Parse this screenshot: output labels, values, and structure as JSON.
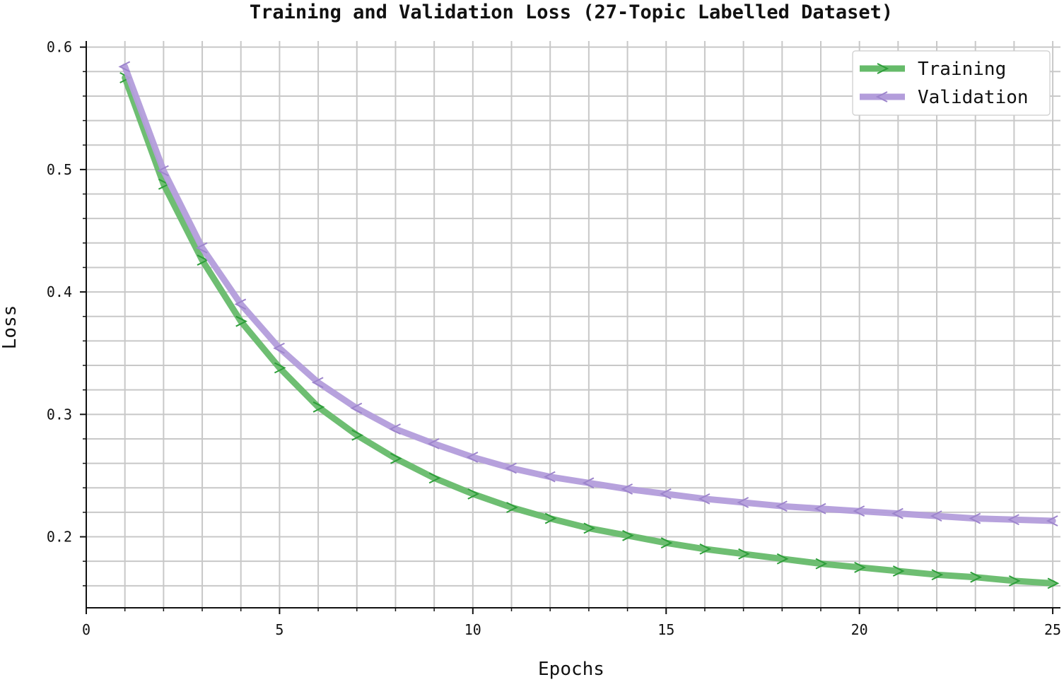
{
  "chart_data": {
    "type": "line",
    "title": "Training and Validation Loss (27-Topic Labelled Dataset)",
    "xlabel": "Epochs",
    "ylabel": "Loss",
    "xlim": [
      0,
      25.2
    ],
    "ylim": [
      0.142,
      0.605
    ],
    "xticks": [
      0,
      5,
      10,
      15,
      20,
      25
    ],
    "yticks": [
      0.2,
      0.3,
      0.4,
      0.5,
      0.6
    ],
    "grid": true,
    "legend_position": "top-right",
    "x": [
      1,
      2,
      3,
      4,
      5,
      6,
      7,
      8,
      9,
      10,
      11,
      12,
      13,
      14,
      15,
      16,
      17,
      18,
      19,
      20,
      21,
      22,
      23,
      24,
      25
    ],
    "series": [
      {
        "name": "Training",
        "color": "#66bb6a",
        "marker_color": "#2e9e3a",
        "marker": "right-tri",
        "values": [
          0.575,
          0.488,
          0.426,
          0.376,
          0.338,
          0.306,
          0.283,
          0.264,
          0.248,
          0.235,
          0.224,
          0.215,
          0.207,
          0.201,
          0.195,
          0.19,
          0.186,
          0.182,
          0.178,
          0.175,
          0.172,
          0.169,
          0.167,
          0.164,
          0.162
        ]
      },
      {
        "name": "Validation",
        "color": "#b39ddb",
        "marker_color": "#9d85cc",
        "marker": "left-tri",
        "values": [
          0.584,
          0.499,
          0.436,
          0.39,
          0.354,
          0.326,
          0.305,
          0.288,
          0.276,
          0.265,
          0.256,
          0.249,
          0.244,
          0.239,
          0.235,
          0.231,
          0.228,
          0.225,
          0.223,
          0.221,
          0.219,
          0.217,
          0.215,
          0.214,
          0.213
        ]
      }
    ]
  }
}
